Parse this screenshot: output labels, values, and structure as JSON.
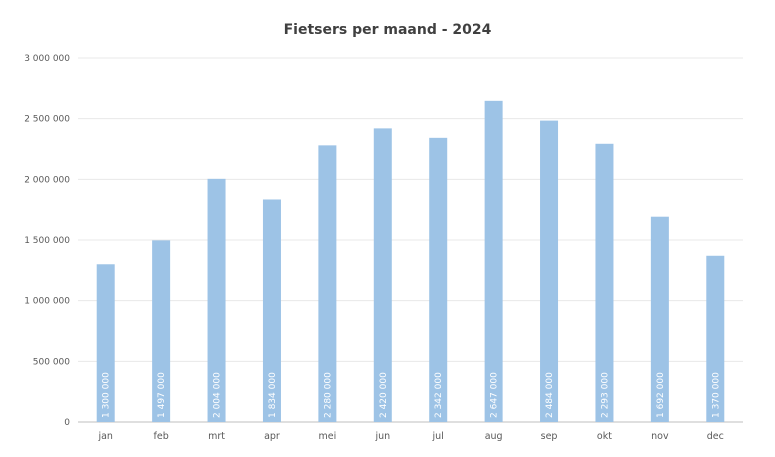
{
  "chart_data": {
    "type": "bar",
    "title": "Fietsers per maand - 2024",
    "xlabel": "",
    "ylabel": "",
    "categories": [
      "jan",
      "feb",
      "mrt",
      "apr",
      "mei",
      "jun",
      "jul",
      "aug",
      "sep",
      "okt",
      "nov",
      "dec"
    ],
    "values": [
      1300000,
      1497000,
      2004000,
      1834000,
      2280000,
      2420000,
      2342000,
      2647000,
      2484000,
      2293000,
      1692000,
      1370000
    ],
    "data_labels": [
      "1 300 000",
      "1 497 000",
      "2 004 000",
      "1 834 000",
      "2 280 000",
      "2 420 000",
      "2 342 000",
      "2 647 000",
      "2 484 000",
      "2 293 000",
      "1 692 000",
      "1 370 000"
    ],
    "ylim": [
      0,
      3000000
    ],
    "y_ticks": [
      0,
      500000,
      1000000,
      1500000,
      2000000,
      2500000,
      3000000
    ],
    "y_tick_labels": [
      "0",
      "500 000",
      "1 000 000",
      "1 500 000",
      "2 000 000",
      "2 500 000",
      "3 000 000"
    ],
    "grid": true,
    "legend": "none",
    "bar_color": "#9DC3E6",
    "grid_color": "#E8E8E8",
    "axis_color": "#BFBFBF"
  }
}
